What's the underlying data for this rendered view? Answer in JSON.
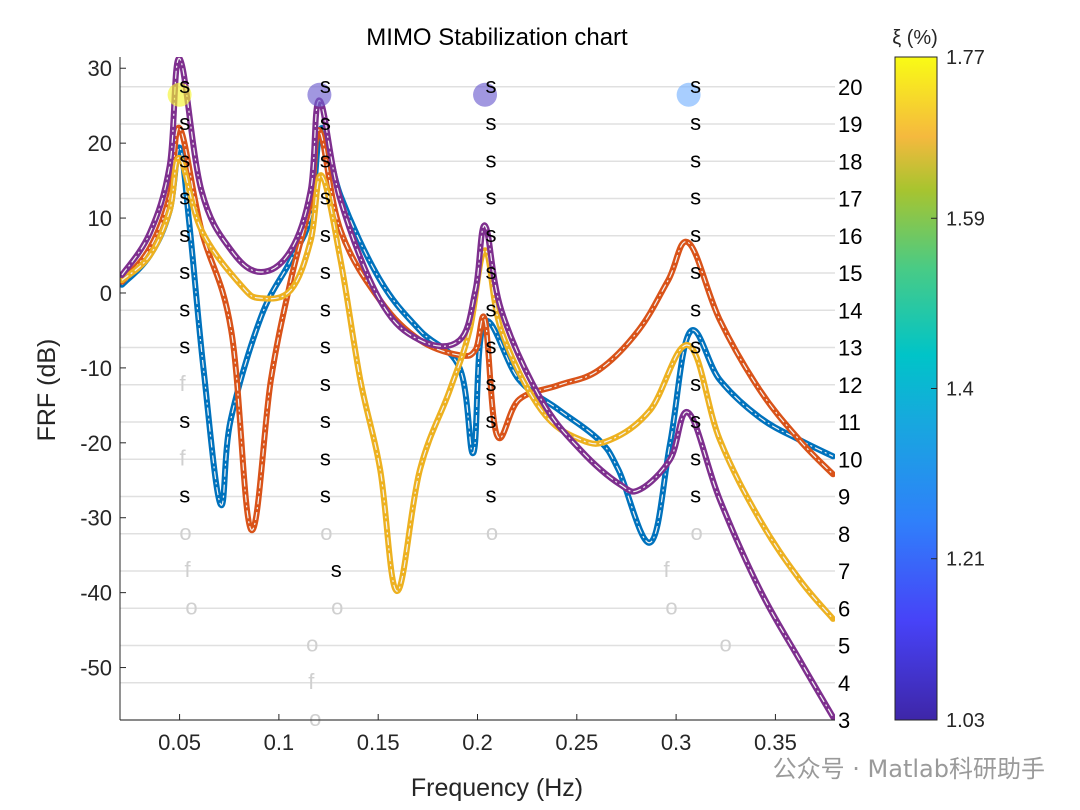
{
  "chart_data": {
    "type": "line",
    "title": "MIMO Stabilization chart",
    "xlabel": "Frequency (Hz)",
    "ylabel": "FRF (dB)",
    "xlim": [
      0.02,
      0.38
    ],
    "ylim": [
      -57,
      31.5
    ],
    "xticks": [
      "0.05",
      "0.1",
      "0.15",
      "0.2",
      "0.25",
      "0.3",
      "0.35"
    ],
    "xtick_values": [
      0.05,
      0.1,
      0.15,
      0.2,
      0.25,
      0.3,
      0.35
    ],
    "yticks": [
      "30",
      "20",
      "10",
      "0",
      "-10",
      "-20",
      "-30",
      "-40",
      "-50"
    ],
    "ytick_values": [
      30,
      20,
      10,
      0,
      -10,
      -20,
      -30,
      -40,
      -50
    ],
    "right_axis": {
      "ylim": [
        3,
        20.8
      ],
      "ticks": [
        "3",
        "4",
        "5",
        "6",
        "7",
        "8",
        "9",
        "10",
        "11",
        "12",
        "13",
        "14",
        "15",
        "16",
        "17",
        "18",
        "19",
        "20"
      ],
      "tick_values": [
        3,
        4,
        5,
        6,
        7,
        8,
        9,
        10,
        11,
        12,
        13,
        14,
        15,
        16,
        17,
        18,
        19,
        20
      ],
      "grid": true
    },
    "series": [
      {
        "color": "#0072BD",
        "x": [
          0.021,
          0.035,
          0.045,
          0.05,
          0.055,
          0.062,
          0.0706,
          0.0757,
          0.091,
          0.106,
          0.116,
          0.1214,
          0.131,
          0.151,
          0.171,
          0.191,
          0.198,
          0.2033,
          0.221,
          0.241,
          0.261,
          0.271,
          0.287,
          0.297,
          0.307,
          0.322,
          0.342,
          0.362,
          0.379
        ],
        "y": [
          1.1,
          5,
          11,
          19.4,
          9,
          -10,
          -28.2,
          -17,
          -3.2,
          4.4,
          10.4,
          22,
          13,
          1.7,
          -5,
          -10,
          -21.3,
          -4,
          -11.6,
          -15.6,
          -19.6,
          -23.6,
          -33.3,
          -20,
          -5.2,
          -11.6,
          -16.6,
          -19.6,
          -21.8
        ]
      },
      {
        "color": "#D95319",
        "x": [
          0.021,
          0.035,
          0.045,
          0.05,
          0.061,
          0.076,
          0.086,
          0.096,
          0.106,
          0.116,
          0.1204,
          0.131,
          0.151,
          0.171,
          0.191,
          0.199,
          0.2038,
          0.2098,
          0.221,
          0.241,
          0.261,
          0.281,
          0.296,
          0.3063,
          0.322,
          0.342,
          0.362,
          0.379
        ],
        "y": [
          1.5,
          6,
          13,
          22,
          8.4,
          -5,
          -31.6,
          -11.6,
          1.7,
          12.4,
          21.7,
          8.4,
          -1,
          -6.3,
          -8.3,
          -7.6,
          -3.6,
          -19,
          -14.2,
          -12.3,
          -10.3,
          -5,
          1.7,
          6.7,
          -3.6,
          -12.9,
          -19.6,
          -24.2
        ]
      },
      {
        "color": "#EDB120",
        "x": [
          0.021,
          0.035,
          0.045,
          0.05,
          0.061,
          0.081,
          0.091,
          0.106,
          0.116,
          0.1214,
          0.131,
          0.141,
          0.151,
          0.1595,
          0.171,
          0.186,
          0.196,
          0.2038,
          0.212,
          0.232,
          0.252,
          0.267,
          0.287,
          0.3063,
          0.322,
          0.342,
          0.362,
          0.379
        ],
        "y": [
          1.7,
          5,
          11,
          18,
          8.4,
          1,
          -0.7,
          0.4,
          7,
          15.7,
          4.4,
          -11.6,
          -23.6,
          -39.8,
          -23.6,
          -13,
          -5,
          5.7,
          -5,
          -15.6,
          -19.6,
          -19.6,
          -15.6,
          -7,
          -19.6,
          -30.2,
          -38.2,
          -43.5
        ]
      },
      {
        "color": "#7E2F8E",
        "x": [
          0.021,
          0.035,
          0.045,
          0.05,
          0.061,
          0.076,
          0.091,
          0.106,
          0.116,
          0.1204,
          0.131,
          0.151,
          0.171,
          0.191,
          0.199,
          0.2038,
          0.212,
          0.232,
          0.252,
          0.272,
          0.282,
          0.297,
          0.3063,
          0.322,
          0.342,
          0.362,
          0.379
        ],
        "y": [
          2.4,
          8,
          17,
          31.3,
          13.7,
          5.7,
          2.8,
          5.7,
          13.7,
          25.7,
          12.4,
          -1,
          -6.3,
          -6.3,
          0.4,
          9,
          -2.3,
          -14.2,
          -21,
          -25.6,
          -26.2,
          -22.2,
          -16,
          -27.6,
          -39.5,
          -48.9,
          -56.6
        ]
      }
    ],
    "stabilization_markers": [
      {
        "f": 0.0526,
        "order": 20,
        "type": "s"
      },
      {
        "f": 0.0526,
        "order": 19,
        "type": "s"
      },
      {
        "f": 0.0526,
        "order": 18,
        "type": "s"
      },
      {
        "f": 0.0526,
        "order": 17,
        "type": "s"
      },
      {
        "f": 0.0526,
        "order": 16,
        "type": "s"
      },
      {
        "f": 0.0526,
        "order": 15,
        "type": "s"
      },
      {
        "f": 0.0526,
        "order": 14,
        "type": "s"
      },
      {
        "f": 0.0526,
        "order": 13,
        "type": "s"
      },
      {
        "f": 0.0515,
        "order": 12,
        "type": "f"
      },
      {
        "f": 0.0526,
        "order": 11,
        "type": "s"
      },
      {
        "f": 0.0515,
        "order": 10,
        "type": "f"
      },
      {
        "f": 0.0526,
        "order": 9,
        "type": "s"
      },
      {
        "f": 0.053,
        "order": 8,
        "type": "o"
      },
      {
        "f": 0.054,
        "order": 7,
        "type": "f"
      },
      {
        "f": 0.056,
        "order": 6,
        "type": "o"
      },
      {
        "f": 0.1234,
        "order": 20,
        "type": "s"
      },
      {
        "f": 0.1234,
        "order": 19,
        "type": "s"
      },
      {
        "f": 0.1234,
        "order": 18,
        "type": "s"
      },
      {
        "f": 0.1234,
        "order": 17,
        "type": "s"
      },
      {
        "f": 0.1234,
        "order": 16,
        "type": "s"
      },
      {
        "f": 0.1234,
        "order": 15,
        "type": "s"
      },
      {
        "f": 0.1234,
        "order": 14,
        "type": "s"
      },
      {
        "f": 0.1234,
        "order": 13,
        "type": "s"
      },
      {
        "f": 0.1234,
        "order": 12,
        "type": "s"
      },
      {
        "f": 0.1234,
        "order": 11,
        "type": "s"
      },
      {
        "f": 0.1234,
        "order": 10,
        "type": "s"
      },
      {
        "f": 0.1234,
        "order": 9,
        "type": "s"
      },
      {
        "f": 0.1239,
        "order": 8,
        "type": "o"
      },
      {
        "f": 0.1289,
        "order": 7,
        "type": "s"
      },
      {
        "f": 0.1294,
        "order": 6,
        "type": "o"
      },
      {
        "f": 0.1168,
        "order": 5,
        "type": "o"
      },
      {
        "f": 0.1163,
        "order": 4,
        "type": "f"
      },
      {
        "f": 0.1183,
        "order": 3,
        "type": "o"
      },
      {
        "f": 0.2068,
        "order": 20,
        "type": "s"
      },
      {
        "f": 0.2068,
        "order": 19,
        "type": "s"
      },
      {
        "f": 0.2068,
        "order": 18,
        "type": "s"
      },
      {
        "f": 0.2068,
        "order": 17,
        "type": "s"
      },
      {
        "f": 0.2068,
        "order": 16,
        "type": "s"
      },
      {
        "f": 0.2068,
        "order": 15,
        "type": "s"
      },
      {
        "f": 0.2068,
        "order": 14,
        "type": "s"
      },
      {
        "f": 0.2068,
        "order": 13,
        "type": "s"
      },
      {
        "f": 0.2068,
        "order": 12,
        "type": "s"
      },
      {
        "f": 0.2068,
        "order": 11,
        "type": "s"
      },
      {
        "f": 0.2068,
        "order": 10,
        "type": "s"
      },
      {
        "f": 0.2068,
        "order": 9,
        "type": "s"
      },
      {
        "f": 0.2073,
        "order": 8,
        "type": "o"
      },
      {
        "f": 0.3098,
        "order": 20,
        "type": "s"
      },
      {
        "f": 0.3098,
        "order": 19,
        "type": "s"
      },
      {
        "f": 0.3098,
        "order": 18,
        "type": "s"
      },
      {
        "f": 0.3098,
        "order": 17,
        "type": "s"
      },
      {
        "f": 0.3098,
        "order": 16,
        "type": "s"
      },
      {
        "f": 0.3098,
        "order": 15,
        "type": "s"
      },
      {
        "f": 0.3098,
        "order": 14,
        "type": "s"
      },
      {
        "f": 0.3098,
        "order": 13,
        "type": "s"
      },
      {
        "f": 0.3098,
        "order": 12,
        "type": "s"
      },
      {
        "f": 0.3098,
        "order": 11,
        "type": "s"
      },
      {
        "f": 0.3098,
        "order": 10,
        "type": "s"
      },
      {
        "f": 0.3098,
        "order": 9,
        "type": "s"
      },
      {
        "f": 0.3103,
        "order": 8,
        "type": "o"
      },
      {
        "f": 0.2952,
        "order": 7,
        "type": "f"
      },
      {
        "f": 0.2977,
        "order": 6,
        "type": "o"
      },
      {
        "f": 0.3249,
        "order": 5,
        "type": "o"
      }
    ],
    "identified_poles": [
      {
        "f": 0.05,
        "order": 20,
        "damping": 1.77,
        "color": "#F5F530"
      },
      {
        "f": 0.1204,
        "order": 20,
        "damping": 1.05,
        "color": "#6F5FD0"
      },
      {
        "f": 0.2038,
        "order": 20,
        "damping": 1.06,
        "color": "#6F5FD0"
      },
      {
        "f": 0.3063,
        "order": 20,
        "damping": 1.22,
        "color": "#7AB4FF"
      }
    ],
    "colorbar": {
      "label": "ξ (%)",
      "range": [
        1.03,
        1.77
      ],
      "ticks": [
        "1.77",
        "1.59",
        "1.4",
        "1.21",
        "1.03"
      ],
      "tick_values": [
        1.77,
        1.59,
        1.4,
        1.21,
        1.03
      ],
      "colormap": "parula"
    },
    "marker_colors": {
      "s": "#000000",
      "f": "#d0d0d0",
      "o": "#d0d0d0"
    }
  },
  "watermark": "公众号 · Matlab科研助手"
}
